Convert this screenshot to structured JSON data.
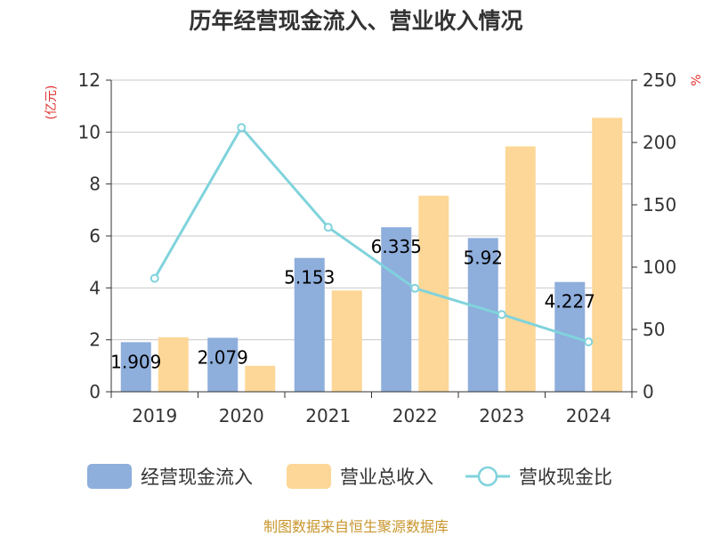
{
  "chart_data": {
    "type": "bar",
    "title": "历年经营现金流入、营业收入情况",
    "categories": [
      "2019",
      "2020",
      "2021",
      "2022",
      "2023",
      "2024"
    ],
    "y_left": {
      "unit": "(亿元)",
      "ylim": [
        0,
        12
      ],
      "ticks": [
        "0",
        "2",
        "4",
        "6",
        "8",
        "10",
        "12"
      ]
    },
    "y_right": {
      "unit": "%",
      "ylim": [
        0,
        250
      ],
      "ticks": [
        "0",
        "50",
        "100",
        "150",
        "200",
        "250"
      ]
    },
    "series": [
      {
        "name": "经营现金流入",
        "type": "bar",
        "axis": "left",
        "color": "#8eaedc",
        "values": [
          1.909,
          2.079,
          5.153,
          6.335,
          5.92,
          4.227
        ],
        "labels": [
          "1.909",
          "2.079",
          "5.153",
          "6.335",
          "5.92",
          "4.227"
        ]
      },
      {
        "name": "营业总收入",
        "type": "bar",
        "axis": "left",
        "color": "#fdd797",
        "values": [
          2.1,
          1.0,
          3.9,
          7.55,
          9.45,
          10.55
        ]
      },
      {
        "name": "营收现金比",
        "type": "line",
        "axis": "right",
        "color": "#80d3dc",
        "values": [
          91,
          212,
          132,
          83,
          62,
          40
        ]
      }
    ],
    "grid": true,
    "legend": "bottom"
  },
  "source": "制图数据来自恒生聚源数据库"
}
